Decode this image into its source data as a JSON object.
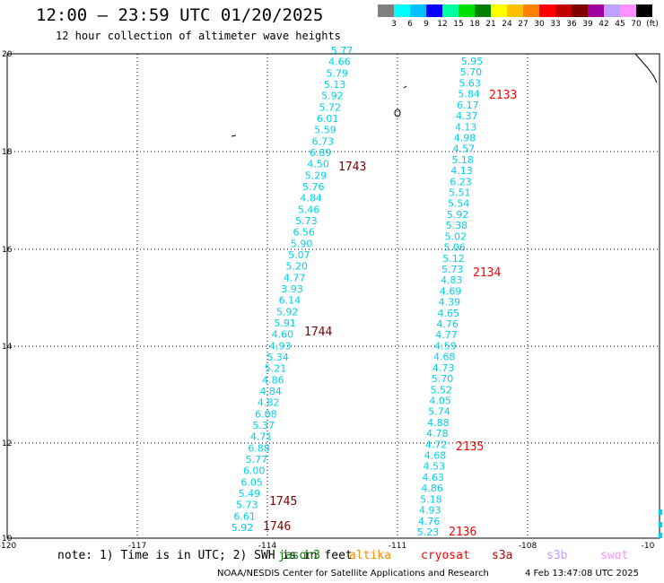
{
  "title": "12:00 – 23:59 UTC 01/20/2025",
  "subtitle": "12 hour collection of altimeter wave heights",
  "legend": {
    "colors": [
      "#808080",
      "#00ffff",
      "#00c0ff",
      "#0000ff",
      "#00ffa0",
      "#00e000",
      "#008000",
      "#ffff00",
      "#ffc000",
      "#ff8000",
      "#ff0000",
      "#c00000",
      "#800000",
      "#a000a0",
      "#c0a0ff",
      "#ff90ff",
      "#000000"
    ],
    "labels": [
      "3",
      "6",
      "9",
      "12",
      "15",
      "18",
      "21",
      "24",
      "27",
      "30",
      "33",
      "36",
      "39",
      "42",
      "45",
      "70",
      "(ft)"
    ]
  },
  "axes": {
    "lat_labels": [
      "20",
      "18",
      "16",
      "14",
      "12",
      "10"
    ],
    "lon_labels": [
      "-120",
      "-117",
      "-114",
      "-111",
      "-108",
      "-10"
    ]
  },
  "passes": [
    {
      "label": "2133",
      "color": "#ff0000"
    },
    {
      "label": "1743",
      "color": "#800000"
    },
    {
      "label": "2134",
      "color": "#ff0000"
    },
    {
      "label": "1744",
      "color": "#800000"
    },
    {
      "label": "2135",
      "color": "#ff0000"
    },
    {
      "label": "1745",
      "color": "#800000"
    },
    {
      "label": "1746",
      "color": "#800000"
    },
    {
      "label": "2136",
      "color": "#ff0000"
    }
  ],
  "track_a": [
    "5.77",
    "4.66",
    "5.79",
    "5.13",
    "5.92",
    "5.72",
    "6.01",
    "5.59",
    "6.73",
    "6.89",
    "4.50",
    "5.29",
    "5.76",
    "4.84",
    "5.46",
    "5.73",
    "6.56",
    "5.90",
    "5.07",
    "5.20",
    "4.77",
    "3.93",
    "6.14",
    "5.92",
    "5.91",
    "4.60",
    "4.93",
    "5.34",
    "5.21",
    "4.86",
    "4.84",
    "4.82",
    "6.08",
    "5.37",
    "4.71",
    "6.88",
    "5.77",
    "6.00",
    "6.05",
    "5.49",
    "5.73",
    "6.61",
    "5.92"
  ],
  "track_b": [
    "5.95",
    "5.70",
    "5.63",
    "5.84",
    "6.17",
    "4.37",
    "4.13",
    "4.98",
    "4.57",
    "5.18",
    "4.13",
    "6.23",
    "5.51",
    "5.54",
    "5.92",
    "5.38",
    "5.02",
    "5.06",
    "5.12",
    "5.73",
    "4.83",
    "4.69",
    "4.39",
    "4.65",
    "4.76",
    "4.77",
    "4.59",
    "4.68",
    "4.73",
    "5.70",
    "5.52",
    "4.05",
    "5.74",
    "4.88",
    "4.78",
    "4.72",
    "4.68",
    "4.53",
    "4.63",
    "4.86",
    "5.18",
    "4.93",
    "4.76",
    "5.23"
  ],
  "note": "note: 1) Time is in UTC; 2) SWH is in feet",
  "satellites": [
    {
      "name": "jason3",
      "color": "#008000"
    },
    {
      "name": "altika",
      "color": "#ff8c00"
    },
    {
      "name": "cryosat",
      "color": "#ff0000"
    },
    {
      "name": "s3a",
      "color": "#c00000"
    },
    {
      "name": "s3b",
      "color": "#c0a0ff"
    },
    {
      "name": "swot",
      "color": "#ff90ff"
    }
  ],
  "footer": "NOAA/NESDIS Center for Satellite Applications and Research",
  "timestamp": "4 Feb 13:47:08 UTC 2025"
}
